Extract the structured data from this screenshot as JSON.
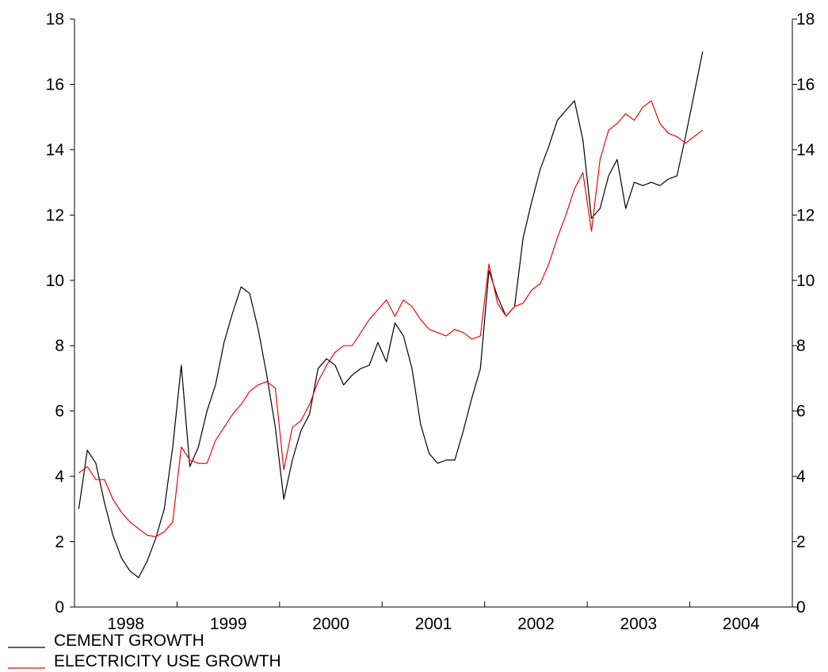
{
  "chart_data": {
    "type": "line",
    "title": "",
    "xlabel": "",
    "ylabel": "",
    "ylim": [
      0,
      18
    ],
    "y_ticks": [
      0,
      2,
      4,
      6,
      8,
      10,
      12,
      14,
      16,
      18
    ],
    "x_tick_labels": [
      "1998",
      "1999",
      "2000",
      "2001",
      "2002",
      "2003",
      "2004"
    ],
    "x_start_year": 1998,
    "periods_per_year": 12,
    "dual_y_axis": true,
    "legend_position": "bottom-left",
    "series": [
      {
        "name": "CEMENT GROWTH",
        "color": "#000000",
        "values": [
          3.0,
          4.8,
          4.4,
          3.2,
          2.2,
          1.5,
          1.1,
          0.9,
          1.4,
          2.1,
          3.0,
          4.9,
          7.4,
          4.3,
          4.9,
          6.0,
          6.8,
          8.1,
          9.0,
          9.8,
          9.6,
          8.5,
          7.1,
          5.5,
          3.3,
          4.5,
          5.4,
          5.9,
          7.3,
          7.6,
          7.4,
          6.8,
          7.1,
          7.3,
          7.4,
          8.1,
          7.5,
          8.7,
          8.3,
          7.3,
          5.6,
          4.7,
          4.4,
          4.5,
          4.5,
          5.4,
          6.4,
          7.3,
          10.3,
          9.5,
          8.9,
          9.2,
          11.3,
          12.4,
          13.4,
          14.1,
          14.9,
          15.2,
          15.5,
          14.3,
          11.9,
          12.2,
          13.2,
          13.7,
          12.2,
          13.0,
          12.9,
          13.0,
          12.9,
          13.1,
          13.2,
          14.4,
          15.7,
          17.0
        ]
      },
      {
        "name": "ELECTRICITY USE GROWTH",
        "color": "#ff0000",
        "values": [
          4.1,
          4.3,
          3.9,
          3.9,
          3.3,
          2.9,
          2.6,
          2.4,
          2.2,
          2.15,
          2.3,
          2.6,
          4.9,
          4.5,
          4.4,
          4.4,
          5.1,
          5.5,
          5.9,
          6.2,
          6.6,
          6.8,
          6.9,
          6.7,
          4.2,
          5.5,
          5.7,
          6.2,
          6.9,
          7.4,
          7.8,
          8.0,
          8.0,
          8.4,
          8.8,
          9.1,
          9.4,
          8.9,
          9.4,
          9.2,
          8.8,
          8.5,
          8.4,
          8.3,
          8.5,
          8.4,
          8.2,
          8.3,
          10.5,
          9.3,
          8.9,
          9.2,
          9.3,
          9.7,
          9.9,
          10.5,
          11.3,
          12.0,
          12.8,
          13.3,
          11.5,
          13.7,
          14.6,
          14.8,
          15.1,
          14.9,
          15.3,
          15.5,
          14.8,
          14.5,
          14.4,
          14.2,
          14.4,
          14.6
        ]
      }
    ]
  }
}
